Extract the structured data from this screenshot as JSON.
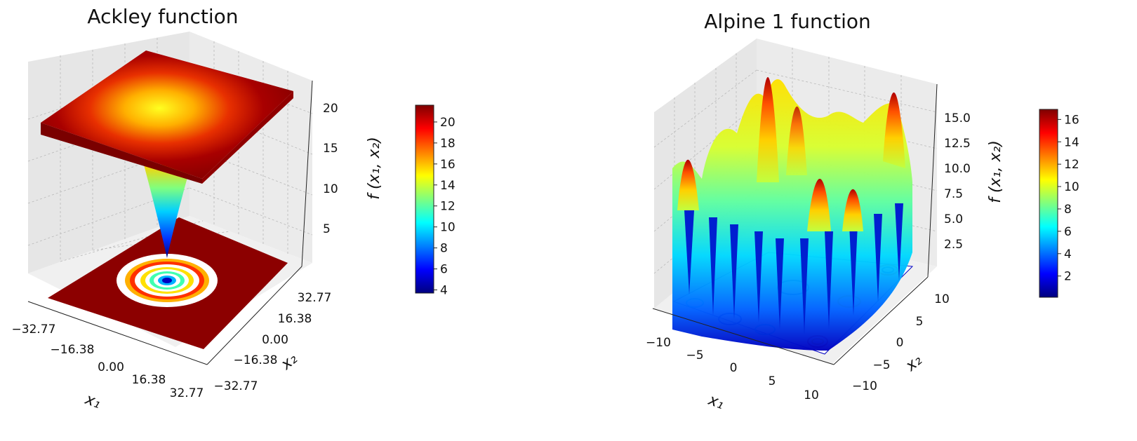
{
  "chart_data": [
    {
      "type": "surface3d",
      "title": "Ackley function",
      "xlabel": "x₁",
      "ylabel": "x₂",
      "zlabel": "f (x₁, x₂)",
      "x_ticks": [
        "−32.77",
        "−16.38",
        "0.00",
        "16.38",
        "32.77"
      ],
      "y_ticks": [
        "−32.77",
        "−16.38",
        "0.00",
        "16.38",
        "32.77"
      ],
      "z_ticks": [
        "5",
        "10",
        "15",
        "20"
      ],
      "xlim": [
        -32.77,
        32.77
      ],
      "ylim": [
        -32.77,
        32.77
      ],
      "zlim": [
        1,
        22
      ],
      "colormap": "jet",
      "colorbar_ticks": [
        "4",
        "6",
        "8",
        "10",
        "12",
        "14",
        "16",
        "18",
        "20"
      ],
      "colorbar_range": [
        3.7,
        21.6
      ],
      "contour_projection": true,
      "grid": true
    },
    {
      "type": "surface3d",
      "title": "Alpine 1 function",
      "xlabel": "x₁",
      "ylabel": "x₂",
      "zlabel": "f (x₁, x₂)",
      "x_ticks": [
        "−10",
        "−5",
        "0",
        "5",
        "10"
      ],
      "y_ticks": [
        "−10",
        "−5",
        "0",
        "5",
        "10"
      ],
      "z_ticks": [
        "2.5",
        "5.0",
        "7.5",
        "10.0",
        "12.5",
        "15.0"
      ],
      "xlim": [
        -10,
        10
      ],
      "ylim": [
        -10,
        10
      ],
      "zlim": [
        0,
        17
      ],
      "colormap": "jet",
      "colorbar_ticks": [
        "2",
        "4",
        "6",
        "8",
        "10",
        "12",
        "14",
        "16"
      ],
      "colorbar_range": [
        0.1,
        16.9
      ],
      "contour_projection": true,
      "grid": true
    }
  ],
  "colors": {
    "jet": [
      "#00007f",
      "#0000ff",
      "#007fff",
      "#00ffff",
      "#7fff7f",
      "#ffff00",
      "#ff7f00",
      "#ff0000",
      "#7f0000"
    ]
  }
}
